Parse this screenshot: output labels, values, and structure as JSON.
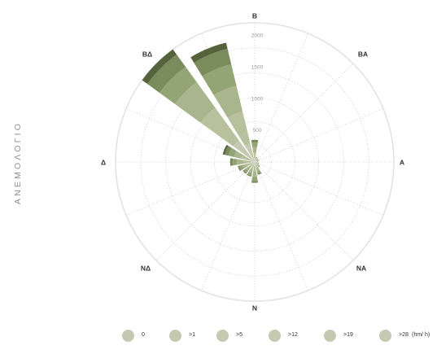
{
  "side_title": "ΑΝΕΜΟΛΟΓΙΟ",
  "chart_data": {
    "type": "polar-stacked-bar",
    "directions": [
      {
        "label": "Β",
        "angle": 0
      },
      {
        "label": "ΒΑ",
        "angle": 45
      },
      {
        "label": "Α",
        "angle": 90
      },
      {
        "label": "ΝΑ",
        "angle": 135
      },
      {
        "label": "Ν",
        "angle": 180
      },
      {
        "label": "ΝΔ",
        "angle": 225
      },
      {
        "label": "Δ",
        "angle": 270
      },
      {
        "label": "ΒΔ",
        "angle": 315
      }
    ],
    "radial_ticks": [
      500,
      1000,
      1500,
      2000
    ],
    "rmax": 2200,
    "speed_classes": [
      "0",
      ">1",
      ">5",
      ">12",
      ">19",
      ">28"
    ],
    "unit_label": "(hm/ h)",
    "colors": [
      "#c5c9b1",
      "#b8c09d",
      "#a9b58c",
      "#93a475",
      "#7a8b5c",
      "#54633c"
    ],
    "sectors": [
      {
        "angle": 0,
        "values": [
          60,
          90,
          90,
          70,
          40,
          0
        ]
      },
      {
        "angle": 22.5,
        "values": [
          25,
          30,
          20,
          10,
          0,
          0
        ]
      },
      {
        "angle": 45,
        "values": [
          20,
          25,
          15,
          10,
          0,
          0
        ]
      },
      {
        "angle": 67.5,
        "values": [
          20,
          20,
          15,
          10,
          0,
          0
        ]
      },
      {
        "angle": 90,
        "values": [
          15,
          20,
          15,
          5,
          0,
          0
        ]
      },
      {
        "angle": 112.5,
        "values": [
          20,
          25,
          15,
          10,
          0,
          0
        ]
      },
      {
        "angle": 135,
        "values": [
          25,
          35,
          30,
          15,
          0,
          0
        ]
      },
      {
        "angle": 157.5,
        "values": [
          40,
          60,
          55,
          35,
          20,
          0
        ]
      },
      {
        "angle": 180,
        "values": [
          60,
          90,
          90,
          60,
          30,
          0
        ]
      },
      {
        "angle": 202.5,
        "values": [
          50,
          70,
          60,
          40,
          20,
          0
        ]
      },
      {
        "angle": 225,
        "values": [
          45,
          70,
          60,
          40,
          20,
          0
        ]
      },
      {
        "angle": 247.5,
        "values": [
          50,
          80,
          70,
          50,
          25,
          0
        ]
      },
      {
        "angle": 270,
        "values": [
          70,
          110,
          100,
          70,
          40,
          0
        ]
      },
      {
        "angle": 292.5,
        "values": [
          90,
          130,
          120,
          90,
          60,
          30
        ]
      },
      {
        "angle": 315,
        "values": [
          420,
          640,
          500,
          300,
          240,
          100
        ]
      },
      {
        "angle": 337.5,
        "values": [
          300,
          520,
          420,
          350,
          250,
          100
        ]
      }
    ]
  }
}
